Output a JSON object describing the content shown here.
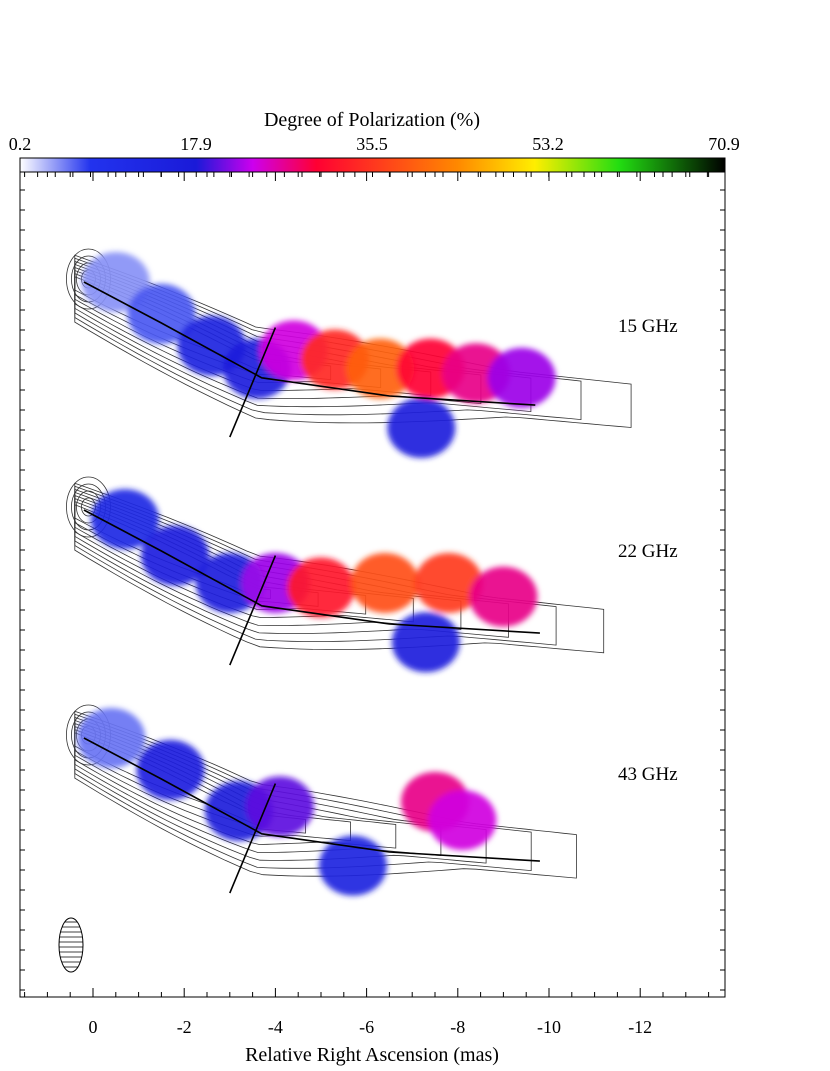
{
  "chart_data": {
    "type": "heatmap",
    "colorbar": {
      "title": "Degree of Polarization (%)",
      "ticks": [
        "0.2",
        "17.9",
        "35.5",
        "53.2",
        "70.9"
      ],
      "range": [
        0.2,
        70.9
      ],
      "colors": [
        "#ffffff",
        "#2233ee",
        "#1a1ad8",
        "#cc00ee",
        "#ff0033",
        "#ff8800",
        "#ffee00",
        "#22dd11",
        "#000000"
      ]
    },
    "xaxis": {
      "label": "Relative Right Ascension (mas)",
      "ticks": [
        "0",
        "-2",
        "-4",
        "-6",
        "-8",
        "-10",
        "-12"
      ],
      "values": [
        0,
        -2,
        -4,
        -6,
        -8,
        -10,
        -12
      ],
      "range": [
        1.6,
        -13.8
      ]
    },
    "panels": [
      {
        "label": "15 GHz",
        "polarization_blobs": [
          {
            "x": -0.5,
            "y": 0.0,
            "p": 4
          },
          {
            "x": -1.5,
            "y": -0.7,
            "p": 6
          },
          {
            "x": -2.6,
            "y": -1.4,
            "p": 14
          },
          {
            "x": -3.6,
            "y": -1.9,
            "p": 16
          },
          {
            "x": -4.4,
            "y": -1.5,
            "p": 24
          },
          {
            "x": -5.3,
            "y": -1.7,
            "p": 34
          },
          {
            "x": -6.3,
            "y": -1.9,
            "p": 40
          },
          {
            "x": -7.4,
            "y": -1.9,
            "p": 30
          },
          {
            "x": -8.4,
            "y": -2.0,
            "p": 27
          },
          {
            "x": -9.4,
            "y": -2.1,
            "p": 22
          },
          {
            "x": -7.2,
            "y": -3.2,
            "p": 16
          }
        ]
      },
      {
        "label": "22 GHz",
        "polarization_blobs": [
          {
            "x": -0.7,
            "y": -0.2,
            "p": 12
          },
          {
            "x": -1.8,
            "y": -1.0,
            "p": 15
          },
          {
            "x": -3.0,
            "y": -1.6,
            "p": 16
          },
          {
            "x": -4.0,
            "y": -1.6,
            "p": 22
          },
          {
            "x": -5.0,
            "y": -1.7,
            "p": 32
          },
          {
            "x": -6.4,
            "y": -1.6,
            "p": 38
          },
          {
            "x": -7.8,
            "y": -1.6,
            "p": 36
          },
          {
            "x": -9.0,
            "y": -1.9,
            "p": 27
          },
          {
            "x": -7.3,
            "y": -2.9,
            "p": 16
          }
        ]
      },
      {
        "label": "43 GHz",
        "polarization_blobs": [
          {
            "x": -0.4,
            "y": 0.0,
            "p": 5
          },
          {
            "x": -1.7,
            "y": -0.7,
            "p": 15
          },
          {
            "x": -3.2,
            "y": -1.6,
            "p": 17
          },
          {
            "x": -4.1,
            "y": -1.5,
            "p": 20
          },
          {
            "x": -7.5,
            "y": -1.4,
            "p": 27
          },
          {
            "x": -8.1,
            "y": -1.8,
            "p": 24
          },
          {
            "x": -5.7,
            "y": -2.8,
            "p": 14
          }
        ]
      }
    ],
    "grid": false,
    "legend": "none"
  }
}
